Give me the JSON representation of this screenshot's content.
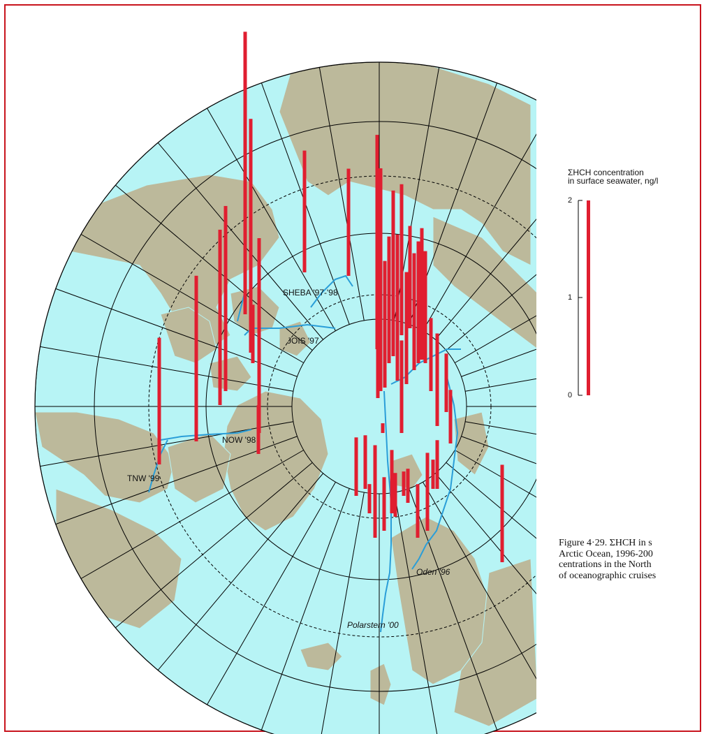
{
  "legend": {
    "title_line1": "ΣHCH concentration",
    "title_line2": "in surface seawater, ng/l",
    "ticks": [
      "2",
      "1",
      "0"
    ],
    "max_value": 2,
    "bar_color": "#e01e30"
  },
  "caption": {
    "lines": [
      "Figure 4·29. ΣHCH in s",
      "Arctic Ocean, 1996-200",
      "centrations in the North",
      "of oceanographic cruises"
    ]
  },
  "cruises": [
    {
      "label": "SHEBA '97-'98"
    },
    {
      "label": "JOIS '97"
    },
    {
      "label": "NOW '98"
    },
    {
      "label": "TNW '99"
    },
    {
      "label": "Oden '96"
    },
    {
      "label": "Polarstern '00"
    }
  ],
  "colors": {
    "ocean": "#b7f4f5",
    "land": "#bcb99b",
    "graticule": "#000000",
    "cruise_track": "#2a9ed8",
    "frame": "#c8141e"
  },
  "bars_ng_per_l": [
    1.3,
    1.7,
    1.8,
    1.9,
    2.9,
    2.4,
    2.0,
    0.6,
    1.25,
    1.1,
    0.5,
    0.55,
    1.2,
    1.3,
    2.0,
    2.2,
    1.3,
    1.7,
    1.5,
    1.55,
    1.15,
    1.05,
    1.2,
    1.25,
    1.35,
    1.15,
    0.95,
    0.6,
    0.55,
    0.75,
    0.95,
    0.1,
    0.95,
    0.55,
    0.3,
    0.65,
    0.45,
    0.25,
    0.35,
    0.55,
    0.8,
    0.5,
    0.3,
    0.55,
    0.6,
    1.0
  ]
}
